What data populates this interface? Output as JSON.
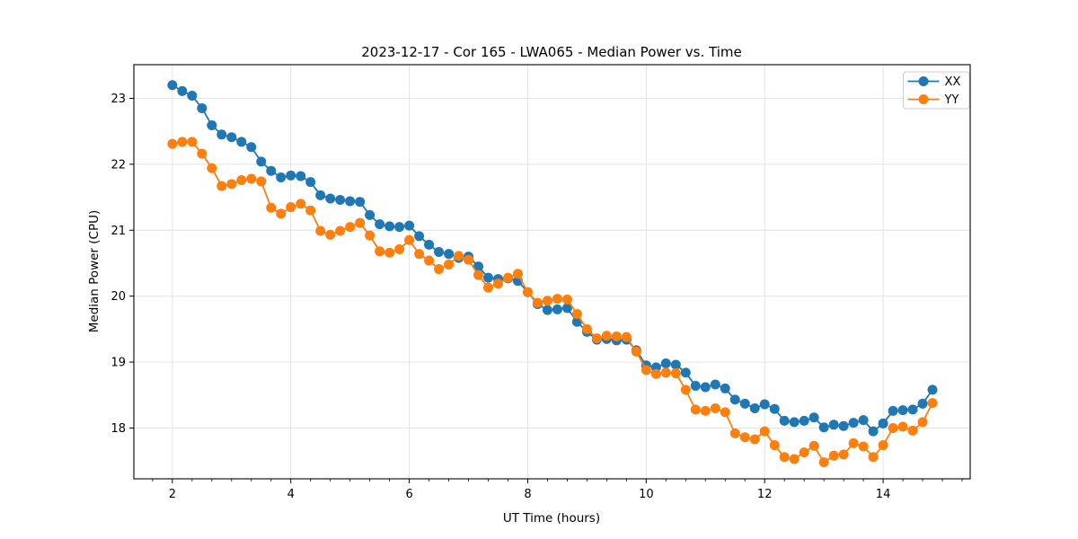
{
  "chart_data": {
    "type": "line",
    "title": "2023-12-17 - Cor 165 - LWA065 - Median Power vs. Time",
    "xlabel": "UT Time (hours)",
    "ylabel": "Median Power (CPU)",
    "xlim": [
      1.35,
      15.47
    ],
    "ylim": [
      17.23,
      23.51
    ],
    "x_ticks": [
      2,
      4,
      6,
      8,
      10,
      12,
      14
    ],
    "x_tick_labels": [
      "2",
      "4",
      "6",
      "8",
      "10",
      "12",
      "14"
    ],
    "y_ticks": [
      18,
      19,
      20,
      21,
      22,
      23
    ],
    "y_tick_labels": [
      "18",
      "19",
      "20",
      "21",
      "22",
      "23"
    ],
    "x_minor_tick_step": 0.3333,
    "grid": true,
    "grid_color": "#e0e0e0",
    "spine_color": "#000000",
    "legend_position": "upper right",
    "marker": "o",
    "x": [
      2.0,
      2.167,
      2.333,
      2.5,
      2.667,
      2.833,
      3.0,
      3.167,
      3.333,
      3.5,
      3.667,
      3.833,
      4.0,
      4.167,
      4.333,
      4.5,
      4.667,
      4.833,
      5.0,
      5.167,
      5.333,
      5.5,
      5.667,
      5.833,
      6.0,
      6.167,
      6.333,
      6.5,
      6.667,
      6.833,
      7.0,
      7.167,
      7.333,
      7.5,
      7.667,
      7.833,
      8.0,
      8.167,
      8.333,
      8.5,
      8.667,
      8.833,
      9.0,
      9.167,
      9.333,
      9.5,
      9.667,
      9.833,
      10.0,
      10.167,
      10.333,
      10.5,
      10.667,
      10.833,
      11.0,
      11.167,
      11.333,
      11.5,
      11.667,
      11.833,
      12.0,
      12.167,
      12.333,
      12.5,
      12.667,
      12.833,
      13.0,
      13.167,
      13.333,
      13.5,
      13.667,
      13.833,
      14.0,
      14.167,
      14.333,
      14.5,
      14.667,
      14.833
    ],
    "series": [
      {
        "name": "XX",
        "color": "#1f77b4",
        "values": [
          23.2,
          23.11,
          23.04,
          22.85,
          22.59,
          22.45,
          22.41,
          22.34,
          22.26,
          22.04,
          21.9,
          21.8,
          21.83,
          21.82,
          21.73,
          21.53,
          21.48,
          21.46,
          21.44,
          21.43,
          21.23,
          21.09,
          21.06,
          21.05,
          21.07,
          20.91,
          20.78,
          20.67,
          20.64,
          20.58,
          20.6,
          20.45,
          20.28,
          20.26,
          20.27,
          20.23,
          20.06,
          19.88,
          19.79,
          19.8,
          19.82,
          19.61,
          19.46,
          19.34,
          19.35,
          19.33,
          19.34,
          19.18,
          18.95,
          18.92,
          18.98,
          18.96,
          18.84,
          18.64,
          18.62,
          18.66,
          18.6,
          18.43,
          18.37,
          18.3,
          18.36,
          18.29,
          18.11,
          18.09,
          18.11,
          18.16,
          18.01,
          18.05,
          18.03,
          18.08,
          18.12,
          17.95,
          18.07,
          18.26,
          18.27,
          18.28,
          18.37,
          18.58
        ]
      },
      {
        "name": "YY",
        "color": "#ff7f0e",
        "values": [
          22.31,
          22.34,
          22.34,
          22.16,
          21.94,
          21.67,
          21.7,
          21.76,
          21.78,
          21.74,
          21.34,
          21.25,
          21.35,
          21.4,
          21.3,
          20.99,
          20.93,
          20.99,
          21.05,
          21.11,
          20.92,
          20.68,
          20.66,
          20.71,
          20.85,
          20.64,
          20.54,
          20.41,
          20.48,
          20.61,
          20.55,
          20.32,
          20.13,
          20.19,
          20.28,
          20.34,
          20.06,
          19.9,
          19.93,
          19.96,
          19.95,
          19.73,
          19.5,
          19.36,
          19.4,
          19.39,
          19.38,
          19.16,
          18.88,
          18.82,
          18.84,
          18.83,
          18.58,
          18.28,
          18.26,
          18.3,
          18.24,
          17.92,
          17.86,
          17.83,
          17.95,
          17.74,
          17.56,
          17.53,
          17.63,
          17.73,
          17.48,
          17.58,
          17.6,
          17.77,
          17.72,
          17.56,
          17.74,
          18.0,
          18.02,
          17.96,
          18.09,
          18.38
        ]
      }
    ]
  }
}
